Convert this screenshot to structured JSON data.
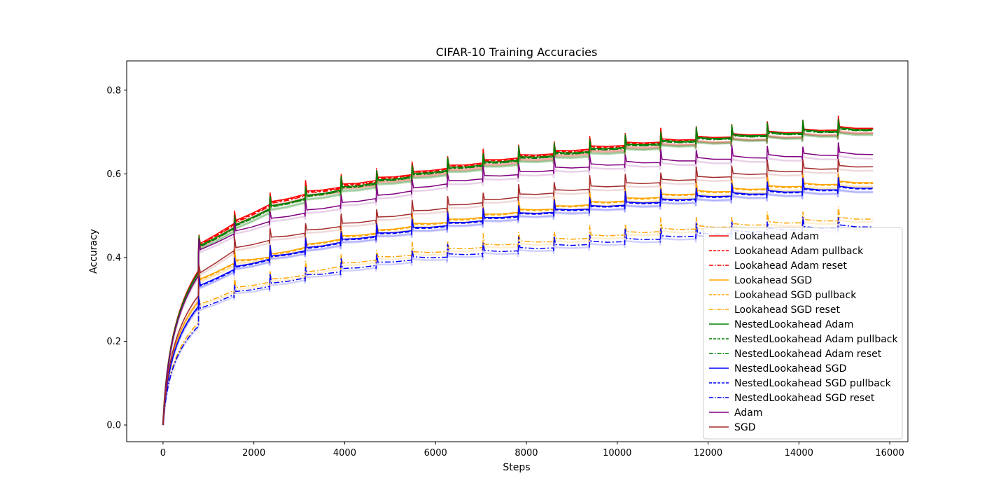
{
  "chart_data": {
    "type": "line",
    "title": "CIFAR-10 Training Accuracies",
    "xlabel": "Steps",
    "ylabel": "Accuracy",
    "xlim": [
      -800,
      16400
    ],
    "ylim": [
      -0.04,
      0.87
    ],
    "xticks": [
      0,
      2000,
      4000,
      6000,
      8000,
      10000,
      12000,
      14000,
      16000
    ],
    "yticks": [
      0.0,
      0.2,
      0.4,
      0.6,
      0.8
    ],
    "ytick_labels": [
      "0.0",
      "0.2",
      "0.4",
      "0.6",
      "0.8"
    ],
    "grid": false,
    "legend_position": "lower-right",
    "epoch_boundaries": [
      782,
      1564,
      2346,
      3128,
      3910,
      4692,
      5474,
      6256,
      7038,
      7820,
      8602,
      9384,
      10166,
      10948,
      11730,
      12512,
      13294,
      14076,
      14858
    ],
    "x": [
      0,
      782,
      1564,
      2346,
      3128,
      3910,
      4692,
      5474,
      6256,
      7038,
      7820,
      8602,
      9384,
      10166,
      10948,
      11730,
      12512,
      13294,
      14076,
      14858,
      15640
    ],
    "series": [
      {
        "name": "Lookahead Adam",
        "color": "#ff0000",
        "dash": "solid",
        "values": [
          0,
          0.43,
          0.485,
          0.53,
          0.555,
          0.572,
          0.588,
          0.602,
          0.617,
          0.63,
          0.642,
          0.652,
          0.663,
          0.672,
          0.68,
          0.686,
          0.692,
          0.698,
          0.703,
          0.709,
          0.713
        ]
      },
      {
        "name": "Lookahead Adam pullback",
        "color": "#ff0000",
        "dash": "dashed",
        "values": [
          0,
          0.428,
          0.482,
          0.528,
          0.553,
          0.57,
          0.586,
          0.6,
          0.615,
          0.628,
          0.64,
          0.65,
          0.661,
          0.67,
          0.678,
          0.684,
          0.69,
          0.696,
          0.702,
          0.707,
          0.712
        ]
      },
      {
        "name": "Lookahead Adam reset",
        "color": "#ff0000",
        "dash": "dashdot",
        "values": [
          0,
          0.427,
          0.48,
          0.526,
          0.551,
          0.568,
          0.584,
          0.598,
          0.613,
          0.626,
          0.638,
          0.648,
          0.659,
          0.668,
          0.676,
          0.683,
          0.689,
          0.695,
          0.701,
          0.706,
          0.711
        ]
      },
      {
        "name": "Lookahead SGD",
        "color": "#ffa500",
        "dash": "solid",
        "values": [
          0,
          0.345,
          0.39,
          0.405,
          0.428,
          0.448,
          0.462,
          0.478,
          0.488,
          0.5,
          0.512,
          0.52,
          0.53,
          0.539,
          0.548,
          0.556,
          0.562,
          0.568,
          0.574,
          0.579,
          0.583
        ]
      },
      {
        "name": "Lookahead SGD pullback",
        "color": "#ffa500",
        "dash": "dashed",
        "values": [
          0,
          0.343,
          0.388,
          0.403,
          0.426,
          0.446,
          0.46,
          0.476,
          0.486,
          0.498,
          0.51,
          0.518,
          0.528,
          0.537,
          0.546,
          0.554,
          0.56,
          0.566,
          0.572,
          0.577,
          0.581
        ]
      },
      {
        "name": "Lookahead SGD reset",
        "color": "#ffa500",
        "dash": "dashdot",
        "values": [
          0,
          0.285,
          0.325,
          0.345,
          0.362,
          0.383,
          0.398,
          0.41,
          0.418,
          0.428,
          0.436,
          0.442,
          0.45,
          0.458,
          0.466,
          0.472,
          0.477,
          0.482,
          0.487,
          0.492,
          0.496
        ]
      },
      {
        "name": "NestedLookahead Adam",
        "color": "#008000",
        "dash": "solid",
        "values": [
          0,
          0.425,
          0.475,
          0.52,
          0.545,
          0.565,
          0.582,
          0.597,
          0.612,
          0.625,
          0.637,
          0.647,
          0.657,
          0.667,
          0.676,
          0.683,
          0.69,
          0.696,
          0.701,
          0.706,
          0.71
        ]
      },
      {
        "name": "NestedLookahead Adam pullback",
        "color": "#008000",
        "dash": "dashed",
        "values": [
          0,
          0.423,
          0.473,
          0.518,
          0.543,
          0.563,
          0.58,
          0.595,
          0.61,
          0.623,
          0.635,
          0.645,
          0.655,
          0.665,
          0.674,
          0.681,
          0.688,
          0.694,
          0.699,
          0.704,
          0.708
        ]
      },
      {
        "name": "NestedLookahead Adam reset",
        "color": "#008000",
        "dash": "dashdot",
        "values": [
          0,
          0.422,
          0.472,
          0.517,
          0.542,
          0.562,
          0.579,
          0.594,
          0.609,
          0.622,
          0.634,
          0.644,
          0.654,
          0.664,
          0.673,
          0.68,
          0.687,
          0.693,
          0.698,
          0.703,
          0.707
        ]
      },
      {
        "name": "NestedLookahead SGD",
        "color": "#0000ff",
        "dash": "solid",
        "values": [
          0,
          0.33,
          0.375,
          0.4,
          0.42,
          0.44,
          0.455,
          0.468,
          0.48,
          0.492,
          0.503,
          0.512,
          0.52,
          0.529,
          0.536,
          0.544,
          0.551,
          0.556,
          0.561,
          0.566,
          0.57
        ]
      },
      {
        "name": "NestedLookahead SGD pullback",
        "color": "#0000ff",
        "dash": "dashed",
        "values": [
          0,
          0.328,
          0.373,
          0.398,
          0.418,
          0.438,
          0.453,
          0.466,
          0.478,
          0.49,
          0.501,
          0.51,
          0.518,
          0.527,
          0.534,
          0.542,
          0.549,
          0.554,
          0.559,
          0.564,
          0.568
        ]
      },
      {
        "name": "NestedLookahead SGD reset",
        "color": "#0000ff",
        "dash": "dashdot",
        "values": [
          0,
          0.275,
          0.315,
          0.335,
          0.355,
          0.37,
          0.385,
          0.398,
          0.405,
          0.413,
          0.42,
          0.427,
          0.435,
          0.442,
          0.448,
          0.455,
          0.461,
          0.466,
          0.47,
          0.474,
          0.477
        ]
      },
      {
        "name": "Adam",
        "color": "#800080",
        "dash": "solid",
        "values": [
          0,
          0.415,
          0.46,
          0.49,
          0.51,
          0.528,
          0.545,
          0.563,
          0.58,
          0.592,
          0.602,
          0.612,
          0.62,
          0.626,
          0.631,
          0.635,
          0.639,
          0.642,
          0.645,
          0.648,
          0.65
        ]
      },
      {
        "name": "SGD",
        "color": "#a52a2a",
        "dash": "solid",
        "values": [
          0,
          0.36,
          0.42,
          0.445,
          0.462,
          0.478,
          0.493,
          0.508,
          0.522,
          0.535,
          0.548,
          0.558,
          0.567,
          0.575,
          0.583,
          0.59,
          0.597,
          0.604,
          0.61,
          0.616,
          0.621
        ]
      }
    ]
  }
}
